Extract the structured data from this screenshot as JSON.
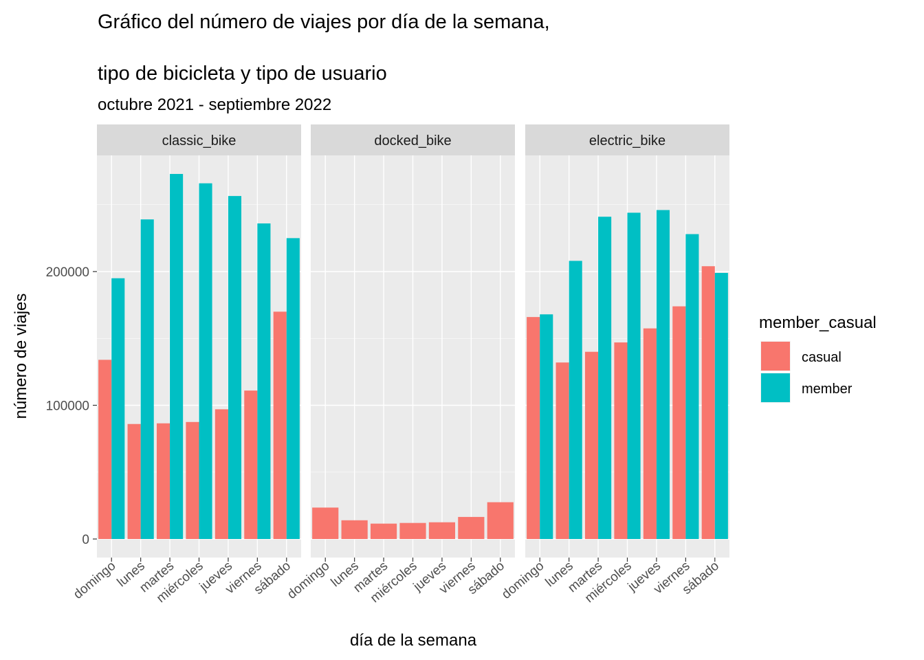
{
  "chart_data": {
    "type": "bar",
    "title_line1": "Gráfico del número de viajes por día de la semana,",
    "title_line2": "tipo de bicicleta y tipo de usuario",
    "subtitle": "octubre 2021 - septiembre 2022",
    "xlabel": "día de la semana",
    "ylabel": "número de viajes",
    "ylim": [
      0,
      290000
    ],
    "y_ticks": [
      {
        "value": 0,
        "label": "0"
      },
      {
        "value": 100000,
        "label": "100000"
      },
      {
        "value": 200000,
        "label": "200000"
      }
    ],
    "grid": true,
    "categories": [
      "domingo",
      "lunes",
      "martes",
      "miércoles",
      "jueves",
      "viernes",
      "sábado"
    ],
    "legend": {
      "title": "member_casual",
      "position": "right",
      "entries": [
        {
          "label": "casual",
          "color": "#F8766D"
        },
        {
          "label": "member",
          "color": "#00BFC4"
        }
      ]
    },
    "facets": [
      {
        "label": "classic_bike",
        "series": [
          {
            "name": "casual",
            "values": [
              134000,
              86000,
              86500,
              87500,
              97000,
              111000,
              170000
            ]
          },
          {
            "name": "member",
            "values": [
              195000,
              239000,
              273000,
              266000,
              256500,
              236000,
              225000
            ]
          }
        ]
      },
      {
        "label": "docked_bike",
        "series": [
          {
            "name": "casual",
            "values": [
              23500,
              14000,
              11500,
              12000,
              12500,
              16500,
              27500
            ]
          },
          {
            "name": "member",
            "values": [
              0,
              0,
              0,
              0,
              0,
              0,
              0
            ]
          }
        ]
      },
      {
        "label": "electric_bike",
        "series": [
          {
            "name": "casual",
            "values": [
              166000,
              132000,
              140000,
              147000,
              157500,
              174000,
              204000
            ]
          },
          {
            "name": "member",
            "values": [
              168000,
              208000,
              241000,
              244000,
              246000,
              228000,
              199000
            ]
          }
        ]
      }
    ]
  }
}
